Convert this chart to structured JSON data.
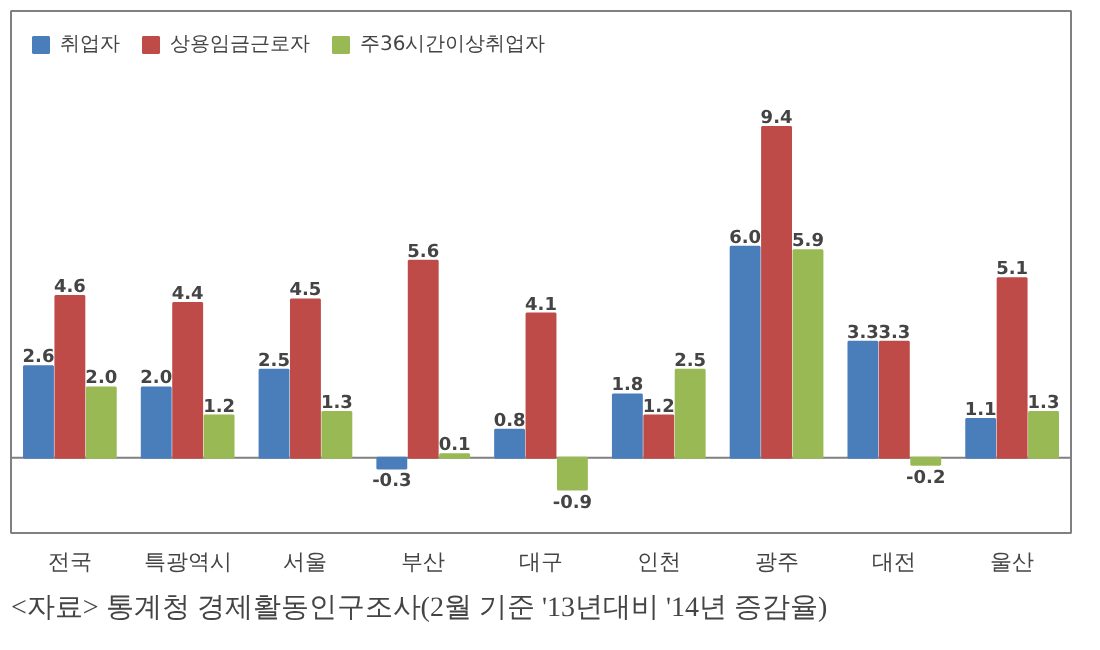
{
  "chart_data": {
    "type": "bar",
    "categories": [
      "전국",
      "특광역시",
      "서울",
      "부산",
      "대구",
      "인천",
      "광주",
      "대전",
      "울산"
    ],
    "series": [
      {
        "name": "취업자",
        "color": "#4a7ebb",
        "values": [
          2.6,
          2.0,
          2.5,
          -0.3,
          0.8,
          1.8,
          6.0,
          3.3,
          1.1
        ],
        "value_labels": [
          "2.6",
          "2.0",
          "2.5",
          "-0.3",
          "0.8",
          "1.8",
          "6.0",
          "3.3",
          "1.1"
        ]
      },
      {
        "name": "상용임금근로자",
        "color": "#be4b48",
        "values": [
          4.6,
          4.4,
          4.5,
          5.6,
          4.1,
          1.2,
          9.4,
          3.3,
          5.1
        ],
        "value_labels": [
          "4.6",
          "4.4",
          "4.5",
          "5.6",
          "4.1",
          "1.2",
          "9.4",
          "3.3",
          "5.1"
        ]
      },
      {
        "name": "주36시간이상취업자",
        "color": "#98b954",
        "values": [
          2.0,
          1.2,
          1.3,
          0.1,
          -0.9,
          2.5,
          5.9,
          -0.2,
          1.3
        ],
        "value_labels": [
          "2.0",
          "1.2",
          "1.3",
          "0.1",
          "-0.9",
          "2.5",
          "5.9",
          "-0.2",
          "1.3"
        ]
      }
    ],
    "legend": "top left",
    "grid": false,
    "annotations": [
      "<자료> 통계청 경제활동인구조사(2월 기준 '13년대비 '14년 증감율)"
    ]
  }
}
